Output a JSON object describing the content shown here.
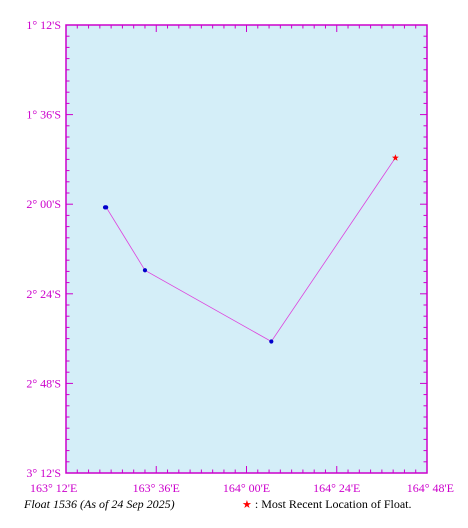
{
  "map": {
    "float_label": "Float 1536 (As of 24 Sep 2025)",
    "legend_symbol": "★",
    "legend_text": ": Most Recent Location of Float.",
    "lon_range": [
      163.2,
      164.8
    ],
    "lat_range": [
      -3.2,
      -1.2
    ],
    "y_ticks": [
      {
        "lat": -1.2,
        "label": "1° 12'S"
      },
      {
        "lat": -1.6,
        "label": "1° 36'S"
      },
      {
        "lat": -2.0,
        "label": "2° 00'S"
      },
      {
        "lat": -2.4,
        "label": "2° 24'S"
      },
      {
        "lat": -2.8,
        "label": "2° 48'S"
      },
      {
        "lat": -3.2,
        "label": "3° 12'S"
      }
    ],
    "x_ticks": [
      {
        "lon": 163.2,
        "label": "163° 12'E"
      },
      {
        "lon": 163.6,
        "label": "163° 36'E"
      },
      {
        "lon": 164.0,
        "label": "164° 00'E"
      },
      {
        "lon": 164.4,
        "label": "164° 24'E"
      },
      {
        "lon": 164.8,
        "label": "164° 48'E"
      }
    ],
    "track": [
      {
        "lon": 163.373,
        "lat": -2.014
      },
      {
        "lon": 163.378,
        "lat": -2.014
      },
      {
        "lon": 163.55,
        "lat": -2.295
      },
      {
        "lon": 164.11,
        "lat": -2.613
      },
      {
        "lon": 164.66,
        "lat": -1.793
      }
    ],
    "colors": {
      "water": "#d4eef8",
      "frame": "#cc00cc",
      "track": "#dd44dd",
      "point": "#0000cc",
      "latest": "#ff0000"
    }
  }
}
